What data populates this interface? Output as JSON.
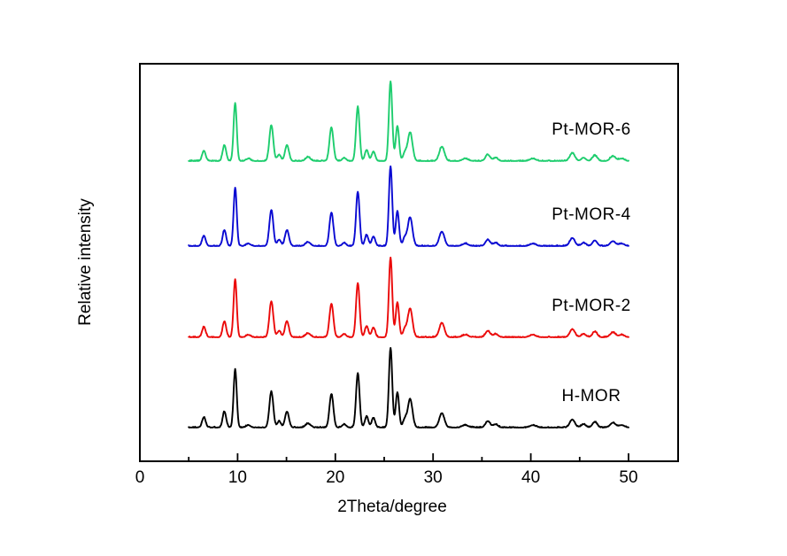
{
  "figure": {
    "background": "#ffffff",
    "frame_color": "#000000"
  },
  "chart_data": {
    "type": "line",
    "subtype": "stacked-xrd-patterns",
    "title": "",
    "xlabel": "2Theta/degree",
    "ylabel": "Relative intensity",
    "xlim": [
      0,
      55
    ],
    "data_x_range": [
      5,
      50
    ],
    "x_major_ticks": [
      0,
      10,
      20,
      30,
      40,
      50
    ],
    "x_minor_ticks": [
      5,
      15,
      25,
      35,
      45
    ],
    "y_ticks": [],
    "grid": false,
    "legend_position": "inline-right-of-each-trace",
    "peaks_shared_two_theta_relints_sigma": [
      [
        6.55,
        0.13,
        0.18
      ],
      [
        8.65,
        0.2,
        0.18
      ],
      [
        9.75,
        0.73,
        0.16
      ],
      [
        11.1,
        0.03,
        0.22
      ],
      [
        13.45,
        0.45,
        0.2
      ],
      [
        14.25,
        0.08,
        0.18
      ],
      [
        15.05,
        0.2,
        0.2
      ],
      [
        17.2,
        0.05,
        0.25
      ],
      [
        19.6,
        0.42,
        0.2
      ],
      [
        20.9,
        0.04,
        0.2
      ],
      [
        22.3,
        0.68,
        0.18
      ],
      [
        23.2,
        0.14,
        0.18
      ],
      [
        23.9,
        0.12,
        0.18
      ],
      [
        25.65,
        1.0,
        0.17
      ],
      [
        26.35,
        0.44,
        0.17
      ],
      [
        27.1,
        0.1,
        0.18
      ],
      [
        27.65,
        0.36,
        0.24
      ],
      [
        30.9,
        0.18,
        0.26
      ],
      [
        33.3,
        0.03,
        0.3
      ],
      [
        35.6,
        0.08,
        0.24
      ],
      [
        36.4,
        0.04,
        0.24
      ],
      [
        40.2,
        0.03,
        0.3
      ],
      [
        44.25,
        0.1,
        0.26
      ],
      [
        45.4,
        0.04,
        0.24
      ],
      [
        46.55,
        0.07,
        0.24
      ],
      [
        48.4,
        0.06,
        0.28
      ],
      [
        49.3,
        0.03,
        0.28
      ]
    ],
    "series": [
      {
        "name": "Pt-MOR-6",
        "color": "#1ECD6E",
        "stack_position": 1
      },
      {
        "name": "Pt-MOR-4",
        "color": "#0A0AD2",
        "stack_position": 2
      },
      {
        "name": "Pt-MOR-2",
        "color": "#EB0A0A",
        "stack_position": 3
      },
      {
        "name": "H-MOR",
        "color": "#000000",
        "stack_position": 4
      }
    ]
  }
}
